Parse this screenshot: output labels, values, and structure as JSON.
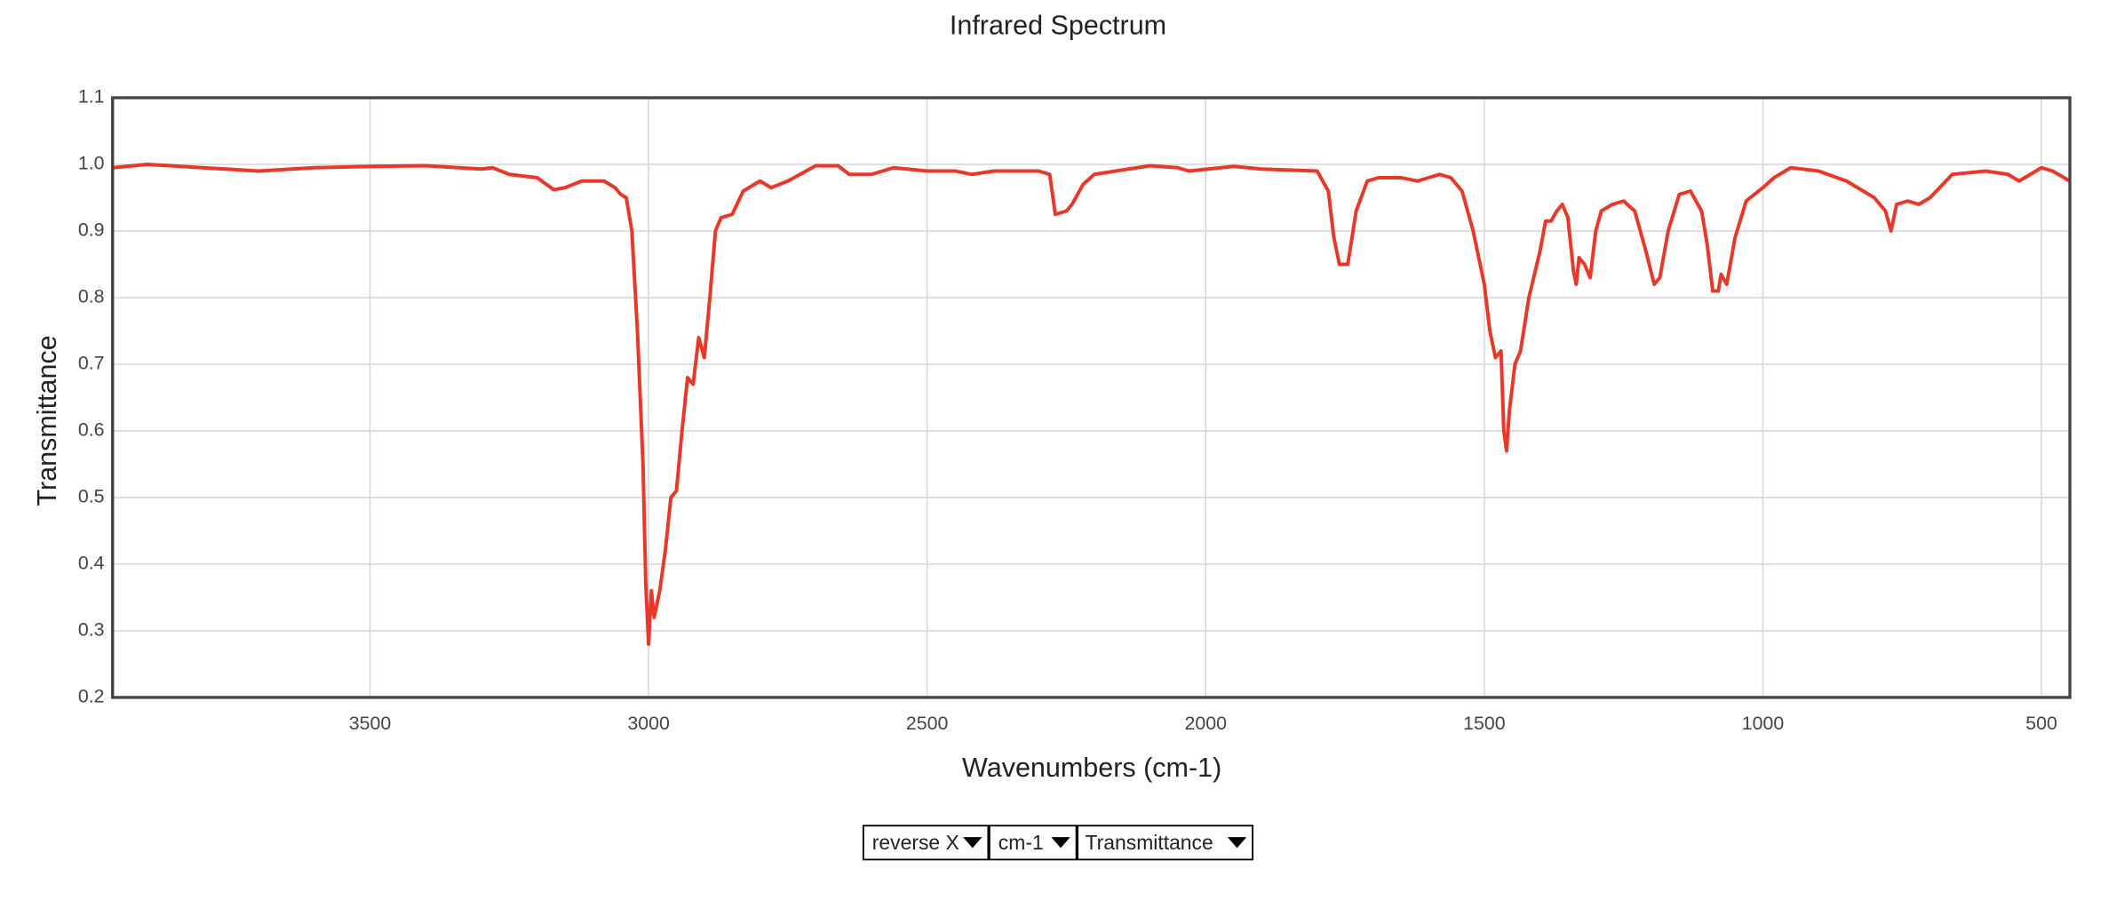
{
  "chart_data": {
    "type": "line",
    "title": "Infrared Spectrum",
    "x_label": "Wavenumbers (cm-1)",
    "y_label": "Transmittance",
    "xlim": [
      3962,
      449
    ],
    "xticks": [
      3500,
      3000,
      2500,
      2000,
      1500,
      1000,
      500
    ],
    "ylim": [
      0.2,
      1.1
    ],
    "yticks": [
      0.2,
      0.3,
      0.4,
      0.5,
      0.6,
      0.7,
      0.8,
      0.9,
      {
        "value": 1,
        "label": "1.0"
      },
      1.1
    ],
    "grid": true,
    "color": "#e8382a",
    "x": [
      3962,
      3900,
      3800,
      3700,
      3600,
      3500,
      3400,
      3300,
      3280,
      3250,
      3200,
      3170,
      3150,
      3120,
      3080,
      3060,
      3050,
      3040,
      3030,
      3020,
      3010,
      3005,
      3000,
      2995,
      2990,
      2980,
      2970,
      2960,
      2950,
      2940,
      2930,
      2920,
      2910,
      2900,
      2890,
      2880,
      2870,
      2850,
      2830,
      2800,
      2780,
      2750,
      2700,
      2660,
      2640,
      2600,
      2560,
      2500,
      2450,
      2420,
      2380,
      2340,
      2300,
      2280,
      2270,
      2250,
      2240,
      2220,
      2200,
      2100,
      2050,
      2030,
      1950,
      1900,
      1800,
      1780,
      1770,
      1760,
      1745,
      1730,
      1710,
      1690,
      1650,
      1620,
      1580,
      1560,
      1540,
      1520,
      1500,
      1490,
      1480,
      1470,
      1465,
      1460,
      1455,
      1445,
      1435,
      1420,
      1400,
      1390,
      1380,
      1370,
      1360,
      1350,
      1340,
      1335,
      1330,
      1320,
      1310,
      1300,
      1290,
      1270,
      1250,
      1230,
      1210,
      1195,
      1185,
      1170,
      1150,
      1130,
      1110,
      1100,
      1090,
      1080,
      1075,
      1065,
      1050,
      1030,
      1000,
      980,
      950,
      900,
      850,
      800,
      780,
      770,
      760,
      740,
      720,
      700,
      660,
      600,
      560,
      540,
      520,
      500,
      480,
      449
    ],
    "y": [
      0.995,
      1.0,
      0.995,
      0.99,
      0.995,
      0.997,
      0.998,
      0.993,
      0.995,
      0.985,
      0.98,
      0.962,
      0.965,
      0.975,
      0.975,
      0.965,
      0.955,
      0.95,
      0.9,
      0.75,
      0.55,
      0.37,
      0.28,
      0.36,
      0.32,
      0.36,
      0.42,
      0.5,
      0.51,
      0.6,
      0.68,
      0.67,
      0.74,
      0.71,
      0.8,
      0.9,
      0.92,
      0.925,
      0.96,
      0.975,
      0.965,
      0.975,
      0.998,
      0.998,
      0.985,
      0.985,
      0.995,
      0.99,
      0.99,
      0.985,
      0.99,
      0.99,
      0.99,
      0.985,
      0.925,
      0.93,
      0.94,
      0.97,
      0.985,
      0.998,
      0.995,
      0.99,
      0.997,
      0.993,
      0.99,
      0.96,
      0.89,
      0.85,
      0.85,
      0.93,
      0.975,
      0.98,
      0.98,
      0.975,
      0.985,
      0.98,
      0.96,
      0.9,
      0.82,
      0.75,
      0.71,
      0.72,
      0.6,
      0.57,
      0.63,
      0.7,
      0.72,
      0.8,
      0.87,
      0.915,
      0.915,
      0.93,
      0.94,
      0.92,
      0.84,
      0.82,
      0.86,
      0.85,
      0.83,
      0.9,
      0.93,
      0.94,
      0.945,
      0.93,
      0.87,
      0.82,
      0.83,
      0.9,
      0.955,
      0.96,
      0.93,
      0.88,
      0.81,
      0.81,
      0.835,
      0.82,
      0.89,
      0.945,
      0.965,
      0.98,
      0.995,
      0.99,
      0.975,
      0.95,
      0.93,
      0.9,
      0.94,
      0.945,
      0.94,
      0.95,
      0.985,
      0.99,
      0.985,
      0.975,
      0.985,
      0.995,
      0.99,
      0.975
    ]
  },
  "controls": [
    "reverse X",
    "cm-1",
    "Transmittance"
  ]
}
